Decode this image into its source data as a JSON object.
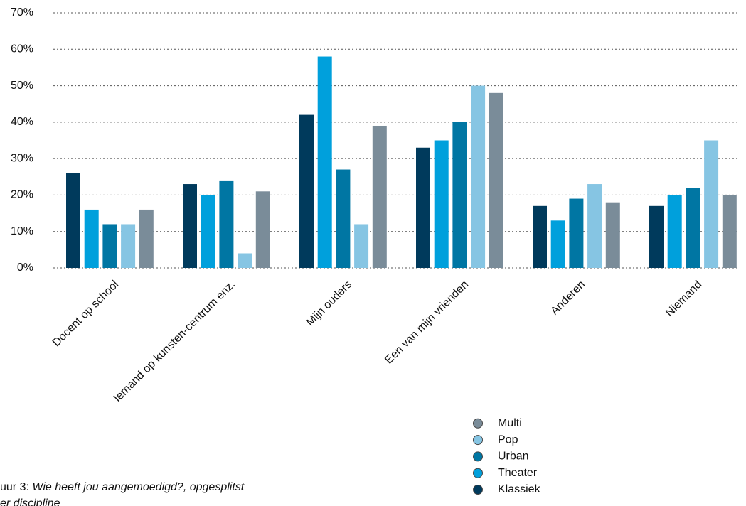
{
  "chart_data": {
    "type": "bar",
    "categories": [
      "Docent op school",
      "Iemand op kunsten-centrum enz.",
      "Mijn ouders",
      "Een van mijn vrienden",
      "Anderen",
      "Niemand"
    ],
    "series": [
      {
        "name": "Klassiek",
        "color": "#003a5c",
        "values": [
          26,
          23,
          42,
          33,
          17,
          17
        ]
      },
      {
        "name": "Theater",
        "color": "#00a0dc",
        "values": [
          16,
          20,
          58,
          35,
          13,
          20
        ]
      },
      {
        "name": "Urban",
        "color": "#0076a3",
        "values": [
          12,
          24,
          27,
          40,
          19,
          22
        ]
      },
      {
        "name": "Pop",
        "color": "#86c5e3",
        "values": [
          12,
          4,
          12,
          50,
          23,
          35
        ]
      },
      {
        "name": "Multi",
        "color": "#7a8c99",
        "values": [
          16,
          21,
          39,
          48,
          18,
          20
        ]
      }
    ],
    "ylim": [
      0,
      70
    ],
    "yticks": [
      {
        "value": 0,
        "label": "0%"
      },
      {
        "value": 10,
        "label": "10%"
      },
      {
        "value": 20,
        "label": "20%"
      },
      {
        "value": 30,
        "label": "30%"
      },
      {
        "value": 40,
        "label": "40%"
      },
      {
        "value": 50,
        "label": "50%"
      },
      {
        "value": 60,
        "label": "60%"
      },
      {
        "value": 70,
        "label": "70%"
      }
    ],
    "grid": true,
    "legend": "bottom-right",
    "caption": {
      "label": "uur 3:",
      "text": "Wie heeft jou aangemoedigd?, opgesplitst",
      "text2": "er discipline"
    }
  }
}
